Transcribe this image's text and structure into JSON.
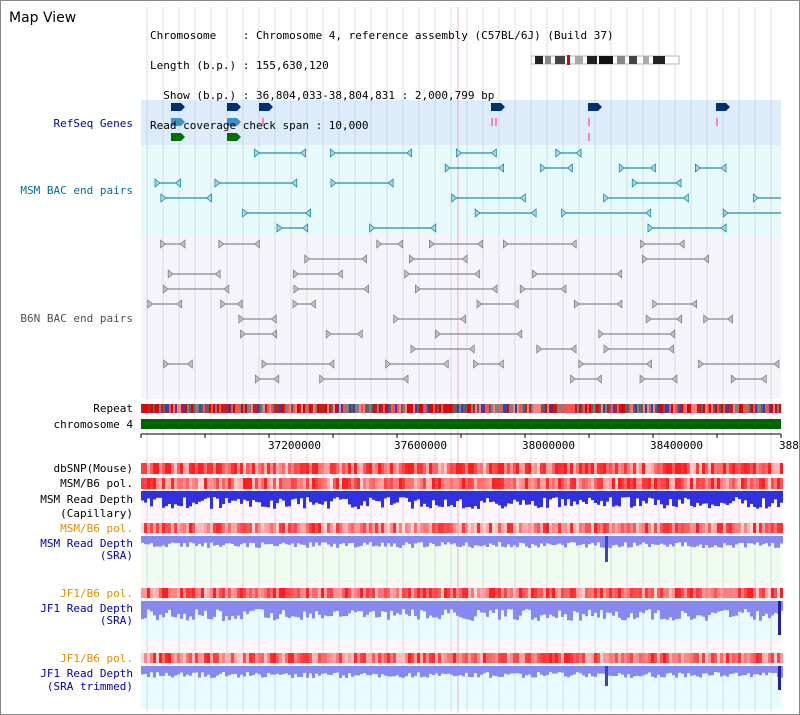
{
  "app": {
    "title": "Map View"
  },
  "info": {
    "line1": "Chromosome    : Chromosome 4, reference assembly (C57BL/6J) (Build 37)",
    "line2": "Length (b.p.) : 155,630,120",
    "line3": "  Show (b.p.) : 36,804,033-38,804,831 : 2,000,799 bp",
    "line4": "Read coverage check span : 10,000"
  },
  "tracks": {
    "refseq": "RefSeq Genes",
    "msm_bac": "MSM BAC end pairs",
    "b6n_bac": "B6N BAC end pairs",
    "repeat": "Repeat",
    "chromosome": "chromosome 4",
    "dbsnp": "dbSNP(Mouse)",
    "msm_b6_pol_1": "MSM/B6 pol.",
    "msm_read_depth_cap_1": "MSM Read Depth",
    "msm_read_depth_cap_2": "(Capillary)",
    "msm_b6_pol_2": "MSM/B6 pol.",
    "msm_read_depth_sra_1": "MSM Read Depth",
    "msm_read_depth_sra_2": "(SRA)",
    "jf1_b6_pol_1": "JF1/B6 pol.",
    "jf1_read_depth_sra_1": "JF1 Read Depth",
    "jf1_read_depth_sra_2": "(SRA)",
    "jf1_b6_pol_2": "JF1/B6 pol.",
    "jf1_read_depth_trim_1": "JF1 Read Depth",
    "jf1_read_depth_trim_2": "(SRA trimmed)"
  },
  "axis": {
    "t1": "37200000",
    "t2": "37600000",
    "t3": "38000000",
    "t4": "38400000",
    "t5": "388"
  },
  "colors": {
    "refseq_bg": "#dcecfa",
    "bac_bg": "#e6fafa",
    "grid": "#c8c8d8",
    "chromosome": "#006400",
    "label_blue": "#0000aa",
    "label_teal": "#006f8f",
    "label_gray": "#505050",
    "label_orange": "#e09000",
    "depth_blue": "#3030e0",
    "depth_light": "#8888f0"
  }
}
